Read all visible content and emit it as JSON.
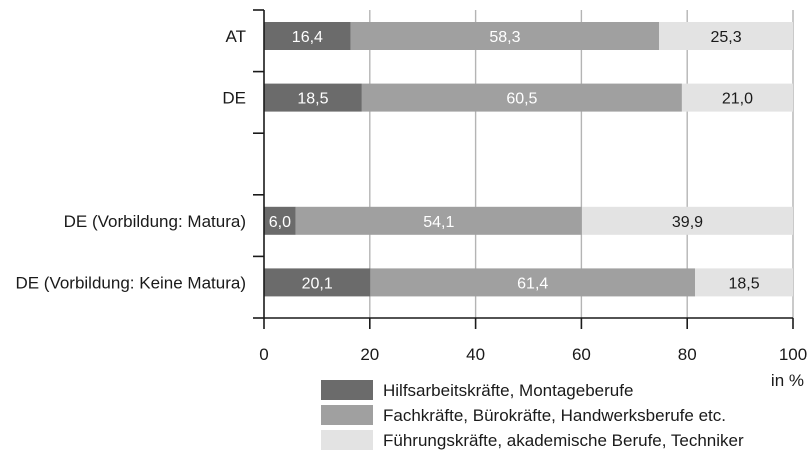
{
  "chart_data": {
    "type": "bar",
    "orientation": "horizontal",
    "stacked": true,
    "categories": [
      "AT",
      "DE",
      "",
      "DE (Vorbildung: Matura)",
      "DE (Vorbildung: Keine Matura)"
    ],
    "series": [
      {
        "name": "Hilfsarbeitskräfte, Montageberufe",
        "values": [
          16.4,
          18.5,
          null,
          6.0,
          20.1
        ],
        "labels": [
          "16,4",
          "18,5",
          "",
          "6,0",
          "20,1"
        ],
        "color": "#6b6b6b",
        "label_color": "#ffffff"
      },
      {
        "name": "Fachkräfte, Bürokräfte, Handwerksberufe etc.",
        "values": [
          58.3,
          60.5,
          null,
          54.1,
          61.4
        ],
        "labels": [
          "58,3",
          "60,5",
          "",
          "54,1",
          "61,4"
        ],
        "color": "#a0a0a0",
        "label_color": "#ffffff"
      },
      {
        "name": "Führungskräfte, akademische Berufe, Techniker",
        "values": [
          25.3,
          21.0,
          null,
          39.9,
          18.5
        ],
        "labels": [
          "25,3",
          "21,0",
          "",
          "39,9",
          "18,5"
        ],
        "color": "#e3e3e3",
        "label_color": "#1a1a1a"
      }
    ],
    "xlim": [
      0,
      100
    ],
    "x_ticks": [
      0,
      20,
      40,
      60,
      80,
      100
    ],
    "x_tick_labels": [
      "0",
      "20",
      "40",
      "60",
      "80",
      "100"
    ],
    "xlabel": "in %",
    "grid": "vertical",
    "grid_color": "#b4b4b4",
    "legend_position": "bottom"
  }
}
